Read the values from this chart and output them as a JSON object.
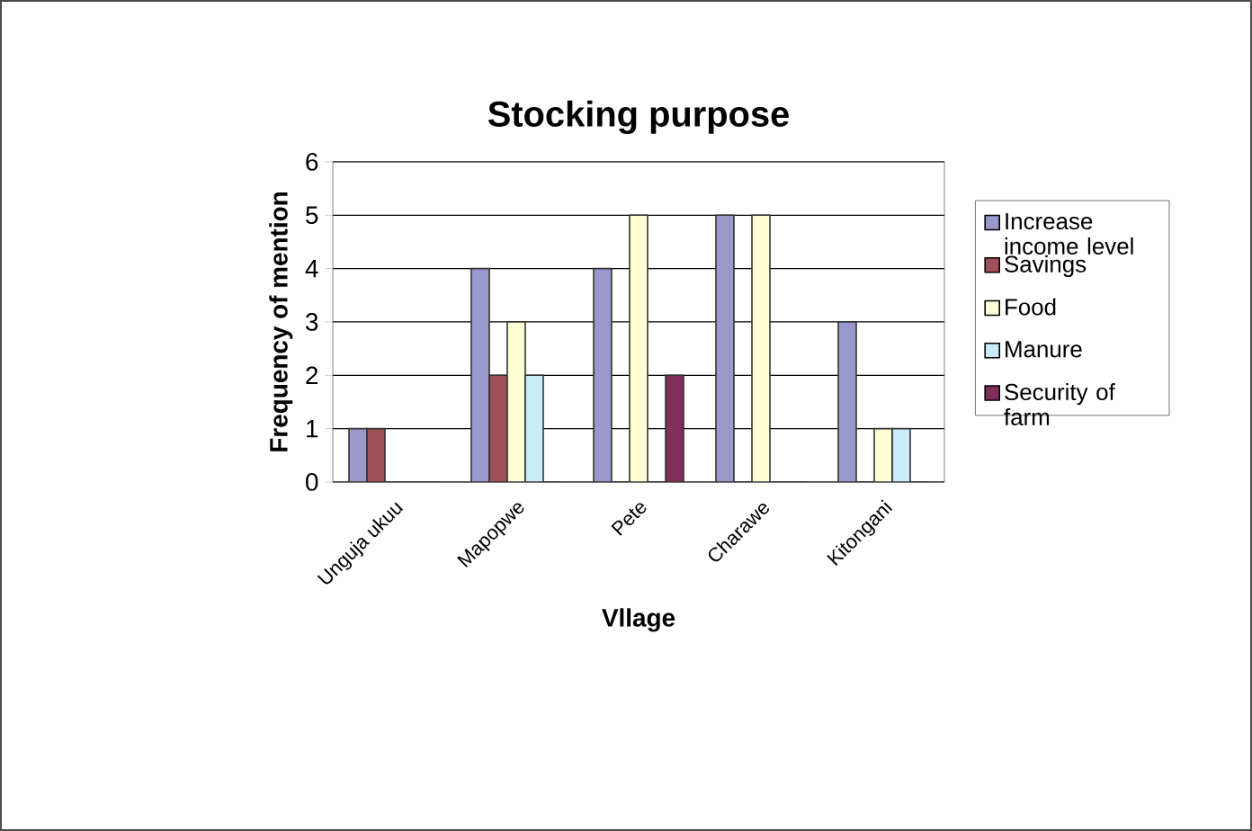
{
  "chart_data": {
    "type": "bar",
    "title": "Stocking purpose",
    "xlabel": "Vllage",
    "ylabel": "Frequency of mention",
    "categories": [
      "Unguja ukuu",
      "Mapopwe",
      "Pete",
      "Charawe",
      "Kitongani"
    ],
    "series": [
      {
        "name": "Increase income level",
        "color": "#9999cc",
        "values": [
          1,
          4,
          4,
          5,
          3
        ]
      },
      {
        "name": "Savings",
        "color": "#a0505a",
        "values": [
          1,
          2,
          0,
          0,
          0
        ]
      },
      {
        "name": "Food",
        "color": "#ffffd6",
        "values": [
          0,
          3,
          5,
          5,
          1
        ]
      },
      {
        "name": "Manure",
        "color": "#c8ecf8",
        "values": [
          0,
          2,
          0,
          0,
          1
        ]
      },
      {
        "name": "Security of farm",
        "color": "#7f2f5a",
        "values": [
          0,
          0,
          2,
          0,
          0
        ]
      }
    ],
    "ylim": [
      0,
      6
    ],
    "yticks": [
      0,
      1,
      2,
      3,
      4,
      5,
      6
    ],
    "grid": "y",
    "legend": "right"
  }
}
